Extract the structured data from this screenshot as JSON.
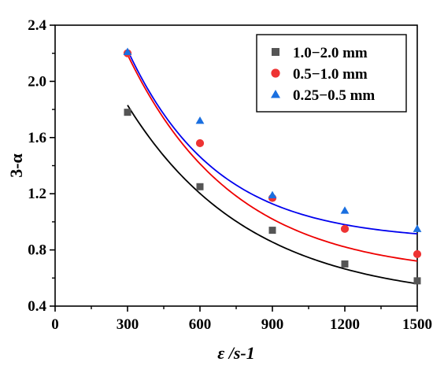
{
  "chart_data": {
    "type": "scatter",
    "xlabel": "ε /s-1",
    "ylabel": "3-α",
    "xlim": [
      0,
      1500
    ],
    "ylim": [
      0.4,
      2.4
    ],
    "x_ticks": [
      0,
      300,
      600,
      900,
      1200,
      1500
    ],
    "y_ticks": [
      0.4,
      0.8,
      1.2,
      1.6,
      2.0,
      2.4
    ],
    "x_tick_labels": [
      "0",
      "300",
      "600",
      "900",
      "1200",
      "1500"
    ],
    "y_tick_labels": [
      "0.4",
      "0.8",
      "1.2",
      "1.6",
      "2.0",
      "2.4"
    ],
    "grid": false,
    "legend_position": "top-right",
    "series": [
      {
        "name": "1.0−2.0 mm",
        "marker": "square",
        "color": "#555555",
        "fit_color": "#000000",
        "x": [
          300,
          600,
          900,
          1200,
          1500
        ],
        "y": [
          1.78,
          1.25,
          0.94,
          0.7,
          0.58
        ],
        "fit": {
          "y0": 0.43,
          "A": 2.54,
          "t": 504
        }
      },
      {
        "name": "0.5−1.0 mm",
        "marker": "circle",
        "color": "#ee3333",
        "fit_color": "#ee0000",
        "x": [
          300,
          600,
          900,
          1200,
          1500
        ],
        "y": [
          2.2,
          1.56,
          1.17,
          0.95,
          0.77
        ],
        "fit": {
          "y0": 0.618,
          "A": 3.11,
          "t": 440
        }
      },
      {
        "name": "0.25−0.5 mm",
        "marker": "triangle",
        "color": "#1a6fe0",
        "fit_color": "#0000ee",
        "x": [
          300,
          600,
          900,
          1200,
          1500
        ],
        "y": [
          2.21,
          1.72,
          1.19,
          1.08,
          0.95
        ],
        "fit": {
          "y0": 0.863,
          "A": 3.08,
          "t": 367
        }
      }
    ]
  }
}
